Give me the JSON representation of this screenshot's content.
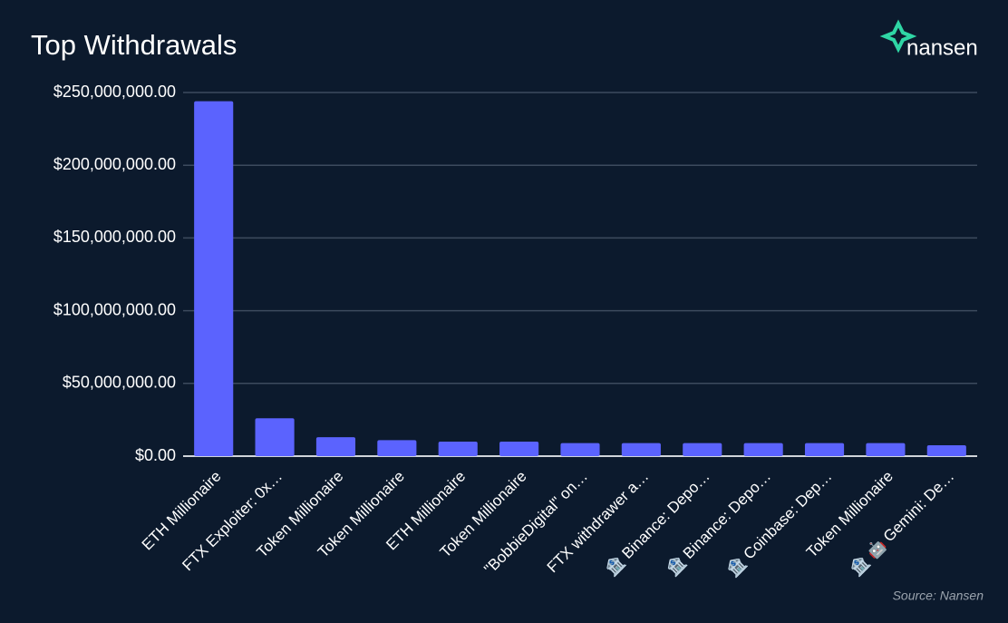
{
  "chart_data": {
    "type": "bar",
    "title": "Top Withdrawals",
    "logo": "nansen",
    "source": "Source: Nansen",
    "categories": [
      "ETH Millionaire",
      "FTX Exploiter: 0x…",
      "Token Millionaire",
      "Token Millionaire",
      "ETH Millionaire",
      "Token Millionaire",
      "\"BobbieDigital\" on…",
      "FTX withdrawer a…",
      "🏦 Binance: Depo…",
      "🏦 Binance: Depo…",
      "🏦 Coinbase: Dep…",
      "Token Millionaire",
      "🏦 🤖 Gemini: De…"
    ],
    "values": [
      244000000,
      26000000,
      13000000,
      11000000,
      10000000,
      10000000,
      9000000,
      9000000,
      9000000,
      9000000,
      9000000,
      9000000,
      7500000
    ],
    "color": "#5b63fe",
    "ylim": [
      0,
      250000000
    ],
    "yticks": [
      {
        "value": 0,
        "label": "$0.00"
      },
      {
        "value": 50000000,
        "label": "$50,000,000.00"
      },
      {
        "value": 100000000,
        "label": "$100,000,000.00"
      },
      {
        "value": 150000000,
        "label": "$150,000,000.00"
      },
      {
        "value": 200000000,
        "label": "$200,000,000.00"
      },
      {
        "value": 250000000,
        "label": "$250,000,000.00"
      }
    ],
    "grid": true
  }
}
